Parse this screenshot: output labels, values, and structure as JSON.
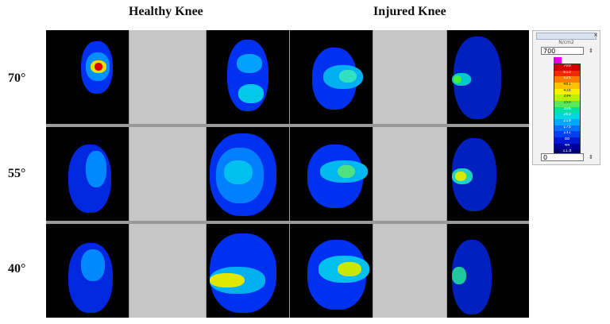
{
  "headings": {
    "healthy": "Healthy Knee",
    "injured": "Injured Knee"
  },
  "rows": [
    {
      "label": "70°"
    },
    {
      "label": "55°"
    },
    {
      "label": "40°"
    }
  ],
  "colorbar": {
    "unit_label": "N/cm2",
    "max_value": "700",
    "min_value": "0",
    "spin_icon": "spinner-arrows-icon",
    "close_icon": "close-icon",
    "levels": [
      {
        "label": "700",
        "color": "#d00000"
      },
      {
        "label": "613",
        "color": "#f02a00"
      },
      {
        "label": "525",
        "color": "#ff7a00"
      },
      {
        "label": "481",
        "color": "#ffc000"
      },
      {
        "label": "438",
        "color": "#f8f000"
      },
      {
        "label": "394",
        "color": "#b8f000"
      },
      {
        "label": "350",
        "color": "#58e858"
      },
      {
        "label": "306",
        "color": "#00e0a0"
      },
      {
        "label": "263",
        "color": "#00d8e0"
      },
      {
        "label": "219",
        "color": "#00a8ff"
      },
      {
        "label": "175",
        "color": "#0070ff"
      },
      {
        "label": "131",
        "color": "#0040f0"
      },
      {
        "label": "88",
        "color": "#0018d0"
      },
      {
        "label": "44",
        "color": "#0000a0"
      },
      {
        "label": "11.8",
        "color": "#000070"
      }
    ]
  }
}
